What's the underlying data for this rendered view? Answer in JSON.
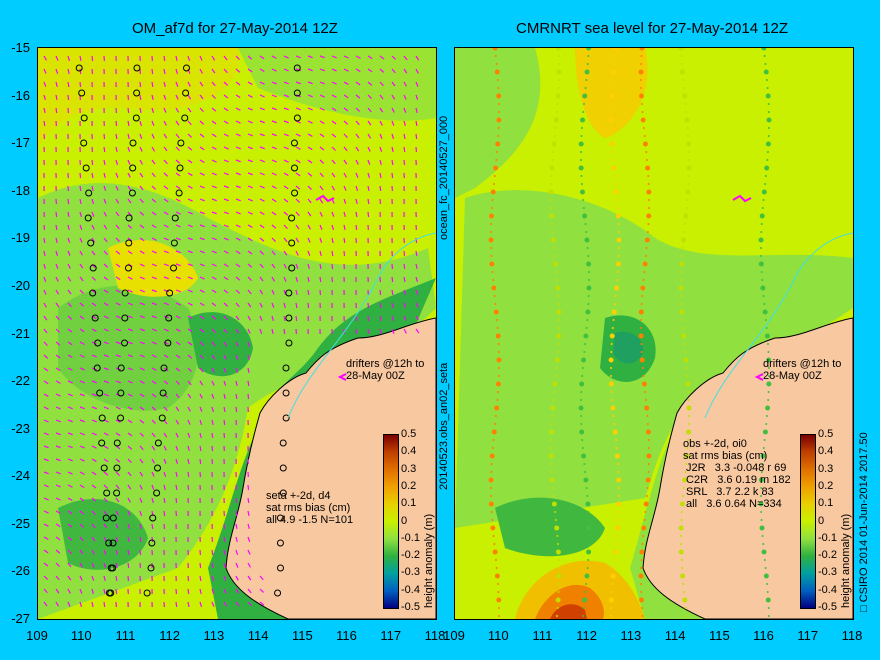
{
  "left_panel": {
    "title": "OM_af7d for 27-May-2014 12Z",
    "drifters_label": "drifters @12h to\n28-May 00Z",
    "stats": "seta +-2d, d4\nsat rms bias (cm)\nall 4.9 -1.5 N=101"
  },
  "right_panel": {
    "title": "CMRNRT sea level  for 27-May-2014 12Z",
    "drifters_label": "drifters @12h to\n28-May 00Z",
    "stats": "obs +-2d, oi0\nsat rms bias (cm)\n J2R   3.3 -0.048 r 69\n C2R   3.6 0.19 m 182\n SRL   3.7 2.2 k 83\n all   3.6 0.64 N=334"
  },
  "vertical_labels": {
    "middle_top": "ocean_fc_20140527_000",
    "middle_bottom": "20140523.obs_an02_seta",
    "colorbar_label": "height anomaly (m)",
    "credit": "□ CSIRO 2014   01-Jun-2014 2017.50"
  },
  "axes": {
    "lat_ticks": [
      "-15",
      "-16",
      "-17",
      "-18",
      "-19",
      "-20",
      "-21",
      "-22",
      "-23",
      "-24",
      "-25",
      "-26",
      "-27"
    ],
    "lon_ticks_left": [
      "109",
      "110",
      "111",
      "112",
      "113",
      "114",
      "115",
      "116",
      "117",
      "118"
    ],
    "lon_ticks_right": [
      "109",
      "110",
      "111",
      "112",
      "113",
      "114",
      "115",
      "116",
      "117",
      "118"
    ]
  },
  "colorbar": {
    "ticks": [
      "0.5",
      "0.4",
      "0.3",
      "0.2",
      "0.1",
      "0",
      "-0.1",
      "-0.2",
      "-0.3",
      "-0.4",
      "-0.5"
    ],
    "colors": [
      "#7a0000",
      "#c04000",
      "#e07000",
      "#f0a000",
      "#e8d000",
      "#c8f000",
      "#90e040",
      "#30b040",
      "#00a0a0",
      "#0060c0",
      "#000080"
    ]
  },
  "colors": {
    "background": "#00ccff",
    "sea_base": "#c8f000",
    "land": "#f8c8a0",
    "vectors": "#ff00ff"
  }
}
